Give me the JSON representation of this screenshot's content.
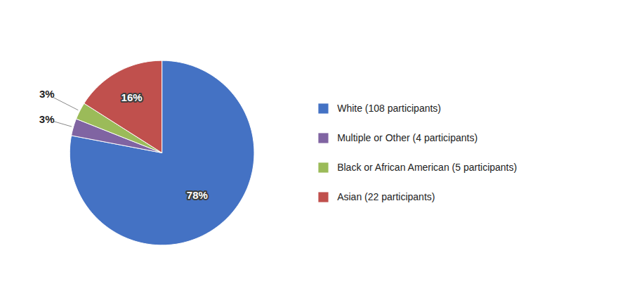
{
  "chart_data": {
    "type": "pie",
    "categories": [
      "White (108 participants)",
      "Multiple or Other (4 participants)",
      "Black or African American (5 participants)",
      "Asian (22 participants)"
    ],
    "values": [
      78,
      3,
      3,
      16
    ],
    "value_labels": [
      "78%",
      "3%",
      "3%",
      "16%"
    ],
    "colors": [
      "#4472C4",
      "#8064A2",
      "#9BBB59",
      "#C0504D"
    ],
    "data_labels": true,
    "legend": "right"
  }
}
